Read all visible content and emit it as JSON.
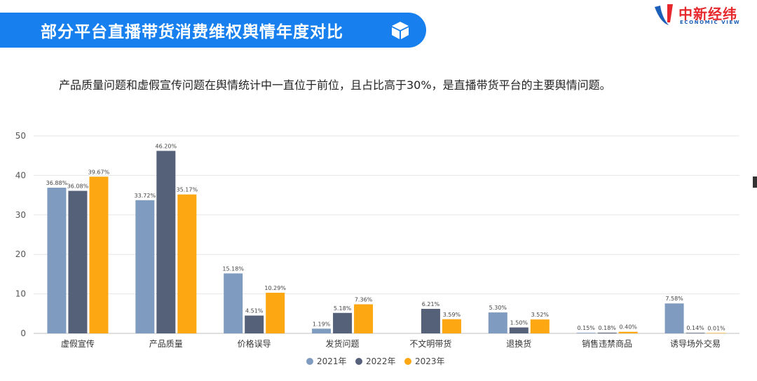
{
  "header": {
    "title": "部分平台直播带货消费维权舆情年度对比",
    "logo_name": "中新经纬",
    "logo_sub": "ECONOMIC VIEW"
  },
  "subtitle": "产品质量问题和虚假宣传问题在舆情统计中一直位于前位，且占比高于30%，是直播带货平台的主要舆情问题。",
  "colors": {
    "banner": "#1780ee",
    "series_2021": "#7f9cc0",
    "series_2022": "#556079",
    "series_2023": "#fda712"
  },
  "chart_data": {
    "type": "bar",
    "categories": [
      "虚假宣传",
      "产品质量",
      "价格误导",
      "发货问题",
      "不文明带货",
      "退换货",
      "销售违禁商品",
      "诱导场外交易"
    ],
    "series": [
      {
        "name": "2021年",
        "values": [
          36.88,
          33.72,
          15.18,
          1.19,
          null,
          5.3,
          0.15,
          7.58
        ],
        "labels": [
          "36.88%",
          "33.72%",
          "15.18%",
          "1.19%",
          "",
          "5.30%",
          "0.15%",
          "7.58%"
        ]
      },
      {
        "name": "2022年",
        "values": [
          36.08,
          46.2,
          4.51,
          5.18,
          6.21,
          1.5,
          0.18,
          0.14
        ],
        "labels": [
          "36.08%",
          "46.20%",
          "4.51%",
          "5.18%",
          "6.21%",
          "1.50%",
          "0.18%",
          "0.14%"
        ]
      },
      {
        "name": "2023年",
        "values": [
          39.67,
          35.17,
          10.29,
          7.36,
          3.59,
          3.52,
          0.4,
          0.01
        ],
        "labels": [
          "39.67%",
          "35.17%",
          "10.29%",
          "7.36%",
          "3.59%",
          "3.52%",
          "0.40%",
          "0.01%"
        ]
      }
    ],
    "ylim": [
      0,
      50
    ],
    "yticks": [
      "0",
      "10",
      "20",
      "30",
      "40",
      "50"
    ],
    "grid": true,
    "legend": "bottom"
  }
}
